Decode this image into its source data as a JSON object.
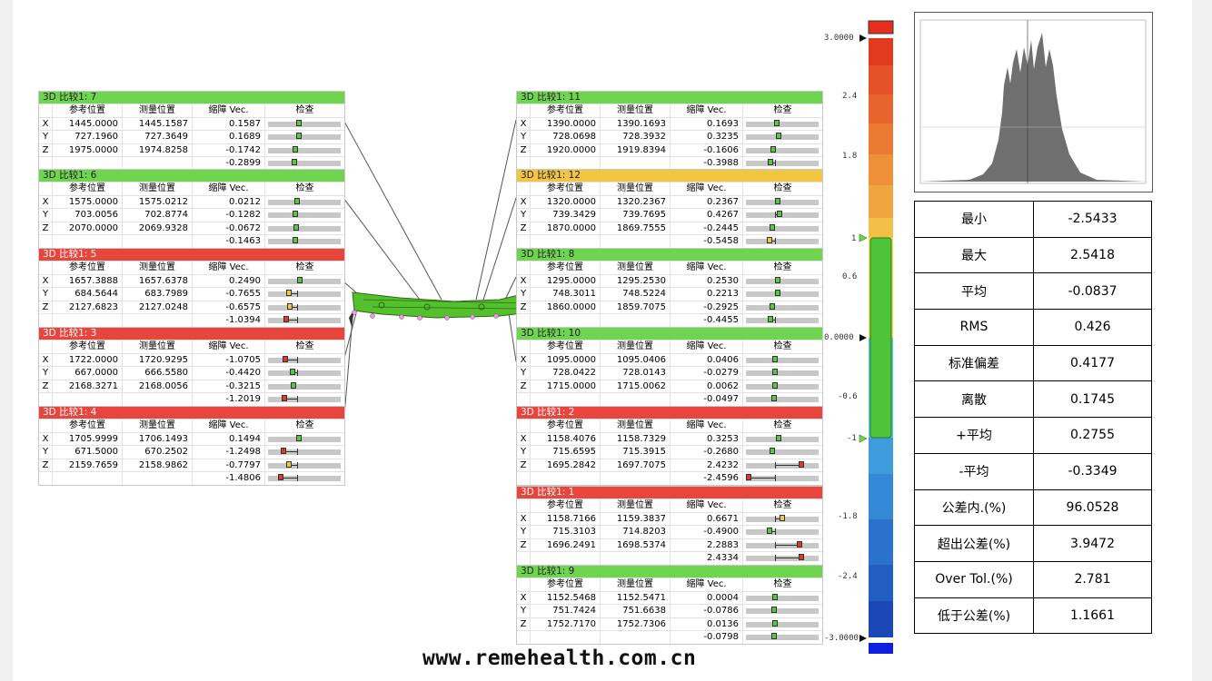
{
  "headers": {
    "ref": "参考位置",
    "meas": "测量位置",
    "dev": "缩障 Vec.",
    "check": "检查"
  },
  "panels": [
    {
      "title": "3D 比较1: 7",
      "status": "green",
      "rows": [
        {
          "axis": "X",
          "ref": "1445.0000",
          "meas": "1445.1587",
          "dev": "0.1587",
          "v": 0.1587
        },
        {
          "axis": "Y",
          "ref": "727.1960",
          "meas": "727.3649",
          "dev": "0.1689",
          "v": 0.1689
        },
        {
          "axis": "Z",
          "ref": "1975.0000",
          "meas": "1974.8258",
          "dev": "-0.1742",
          "v": -0.1742
        },
        {
          "axis": "",
          "ref": "",
          "meas": "",
          "dev": "-0.2899",
          "v": -0.2899
        }
      ]
    },
    {
      "title": "3D 比较1: 6",
      "status": "green",
      "rows": [
        {
          "axis": "X",
          "ref": "1575.0000",
          "meas": "1575.0212",
          "dev": "0.0212",
          "v": 0.0212
        },
        {
          "axis": "Y",
          "ref": "703.0056",
          "meas": "702.8774",
          "dev": "-0.1282",
          "v": -0.1282
        },
        {
          "axis": "Z",
          "ref": "2070.0000",
          "meas": "2069.9328",
          "dev": "-0.0672",
          "v": -0.0672
        },
        {
          "axis": "",
          "ref": "",
          "meas": "",
          "dev": "-0.1463",
          "v": -0.1463
        }
      ]
    },
    {
      "title": "3D 比较1: 5",
      "status": "red",
      "rows": [
        {
          "axis": "X",
          "ref": "1657.3888",
          "meas": "1657.6378",
          "dev": "0.2490",
          "v": 0.249
        },
        {
          "axis": "Y",
          "ref": "684.5644",
          "meas": "683.7989",
          "dev": "-0.7655",
          "v": -0.7655
        },
        {
          "axis": "Z",
          "ref": "2127.6823",
          "meas": "2127.0248",
          "dev": "-0.6575",
          "v": -0.6575
        },
        {
          "axis": "",
          "ref": "",
          "meas": "",
          "dev": "-1.0394",
          "v": -1.0394
        }
      ]
    },
    {
      "title": "3D 比较1: 3",
      "status": "red",
      "rows": [
        {
          "axis": "X",
          "ref": "1722.0000",
          "meas": "1720.9295",
          "dev": "-1.0705",
          "v": -1.0705
        },
        {
          "axis": "Y",
          "ref": "667.0000",
          "meas": "666.5580",
          "dev": "-0.4420",
          "v": -0.442
        },
        {
          "axis": "Z",
          "ref": "2168.3271",
          "meas": "2168.0056",
          "dev": "-0.3215",
          "v": -0.3215
        },
        {
          "axis": "",
          "ref": "",
          "meas": "",
          "dev": "-1.2019",
          "v": -1.2019
        }
      ]
    },
    {
      "title": "3D 比较1: 4",
      "status": "red",
      "rows": [
        {
          "axis": "X",
          "ref": "1705.9999",
          "meas": "1706.1493",
          "dev": "0.1494",
          "v": 0.1494
        },
        {
          "axis": "Y",
          "ref": "671.5000",
          "meas": "670.2502",
          "dev": "-1.2498",
          "v": -1.2498
        },
        {
          "axis": "Z",
          "ref": "2159.7659",
          "meas": "2158.9862",
          "dev": "-0.7797",
          "v": -0.7797
        },
        {
          "axis": "",
          "ref": "",
          "meas": "",
          "dev": "-1.4806",
          "v": -1.4806
        }
      ]
    },
    {
      "title": "3D 比较1: 11",
      "status": "green",
      "rows": [
        {
          "axis": "X",
          "ref": "1390.0000",
          "meas": "1390.1693",
          "dev": "0.1693",
          "v": 0.1693
        },
        {
          "axis": "Y",
          "ref": "728.0698",
          "meas": "728.3932",
          "dev": "0.3235",
          "v": 0.3235
        },
        {
          "axis": "Z",
          "ref": "1920.0000",
          "meas": "1919.8394",
          "dev": "-0.1606",
          "v": -0.1606
        },
        {
          "axis": "",
          "ref": "",
          "meas": "",
          "dev": "-0.3988",
          "v": -0.3988
        }
      ]
    },
    {
      "title": "3D 比较1: 12",
      "status": "yellow",
      "rows": [
        {
          "axis": "X",
          "ref": "1320.0000",
          "meas": "1320.2367",
          "dev": "0.2367",
          "v": 0.2367
        },
        {
          "axis": "Y",
          "ref": "739.3429",
          "meas": "739.7695",
          "dev": "0.4267",
          "v": 0.4267
        },
        {
          "axis": "Z",
          "ref": "1870.0000",
          "meas": "1869.7555",
          "dev": "-0.2445",
          "v": -0.2445
        },
        {
          "axis": "",
          "ref": "",
          "meas": "",
          "dev": "-0.5458",
          "v": -0.5458
        }
      ]
    },
    {
      "title": "3D 比较1: 8",
      "status": "green",
      "rows": [
        {
          "axis": "X",
          "ref": "1295.0000",
          "meas": "1295.2530",
          "dev": "0.2530",
          "v": 0.253
        },
        {
          "axis": "Y",
          "ref": "748.3011",
          "meas": "748.5224",
          "dev": "0.2213",
          "v": 0.2213
        },
        {
          "axis": "Z",
          "ref": "1860.0000",
          "meas": "1859.7075",
          "dev": "-0.2925",
          "v": -0.2925
        },
        {
          "axis": "",
          "ref": "",
          "meas": "",
          "dev": "-0.4455",
          "v": -0.4455
        }
      ]
    },
    {
      "title": "3D 比较1: 10",
      "status": "green",
      "rows": [
        {
          "axis": "X",
          "ref": "1095.0000",
          "meas": "1095.0406",
          "dev": "0.0406",
          "v": 0.0406
        },
        {
          "axis": "Y",
          "ref": "728.0422",
          "meas": "728.0143",
          "dev": "-0.0279",
          "v": -0.0279
        },
        {
          "axis": "Z",
          "ref": "1715.0000",
          "meas": "1715.0062",
          "dev": "0.0062",
          "v": 0.0062
        },
        {
          "axis": "",
          "ref": "",
          "meas": "",
          "dev": "-0.0497",
          "v": -0.0497
        }
      ]
    },
    {
      "title": "3D 比较1: 2",
      "status": "red",
      "rows": [
        {
          "axis": "X",
          "ref": "1158.4076",
          "meas": "1158.7329",
          "dev": "0.3253",
          "v": 0.3253
        },
        {
          "axis": "Y",
          "ref": "715.6595",
          "meas": "715.3915",
          "dev": "-0.2680",
          "v": -0.268
        },
        {
          "axis": "Z",
          "ref": "1695.2842",
          "meas": "1697.7075",
          "dev": "2.4232",
          "v": 2.4232
        },
        {
          "axis": "",
          "ref": "",
          "meas": "",
          "dev": "-2.4596",
          "v": -2.4596
        }
      ]
    },
    {
      "title": "3D 比较1: 1",
      "status": "red",
      "rows": [
        {
          "axis": "X",
          "ref": "1158.7166",
          "meas": "1159.3837",
          "dev": "0.6671",
          "v": 0.6671
        },
        {
          "axis": "Y",
          "ref": "715.3103",
          "meas": "714.8203",
          "dev": "-0.4900",
          "v": -0.49
        },
        {
          "axis": "Z",
          "ref": "1696.2491",
          "meas": "1698.5374",
          "dev": "2.2883",
          "v": 2.2883
        },
        {
          "axis": "",
          "ref": "",
          "meas": "",
          "dev": "2.4334",
          "v": 2.4334
        }
      ]
    },
    {
      "title": "3D 比较1: 9",
      "status": "green",
      "rows": [
        {
          "axis": "X",
          "ref": "1152.5468",
          "meas": "1152.5471",
          "dev": "0.0004",
          "v": 0.0004
        },
        {
          "axis": "Y",
          "ref": "751.7424",
          "meas": "751.6638",
          "dev": "-0.0786",
          "v": -0.0786
        },
        {
          "axis": "Z",
          "ref": "1752.7170",
          "meas": "1752.7306",
          "dev": "0.0136",
          "v": 0.0136
        },
        {
          "axis": "",
          "ref": "",
          "meas": "",
          "dev": "-0.0798",
          "v": -0.0798
        }
      ]
    }
  ],
  "scale": {
    "max": "3.0000",
    "t24": "2.4",
    "t18": "1.8",
    "tol_hi": "1",
    "t06": "0.6",
    "zero": "0.0000",
    "tn06": "-0.6",
    "tol_lo": "-1",
    "tn18": "-1.8",
    "tn24": "-2.4",
    "min": "-3.0000"
  },
  "stats": [
    {
      "label": "最小",
      "value": "-2.5433"
    },
    {
      "label": "最大",
      "value": "2.5418"
    },
    {
      "label": "平均",
      "value": "-0.0837"
    },
    {
      "label": "RMS",
      "value": "0.426"
    },
    {
      "label": "标准偏差",
      "value": "0.4177"
    },
    {
      "label": "离散",
      "value": "0.1745"
    },
    {
      "label": "+平均",
      "value": "0.2755"
    },
    {
      "label": "-平均",
      "value": "-0.3349"
    },
    {
      "label": "公差内.(%)",
      "value": "96.0528"
    },
    {
      "label": "超出公差(%)",
      "value": "3.9472"
    },
    {
      "label": "Over Tol.(%)",
      "value": "2.781"
    },
    {
      "label": "低于公差(%)",
      "value": "1.1661"
    }
  ],
  "site": "www.remehealth.com.cn"
}
